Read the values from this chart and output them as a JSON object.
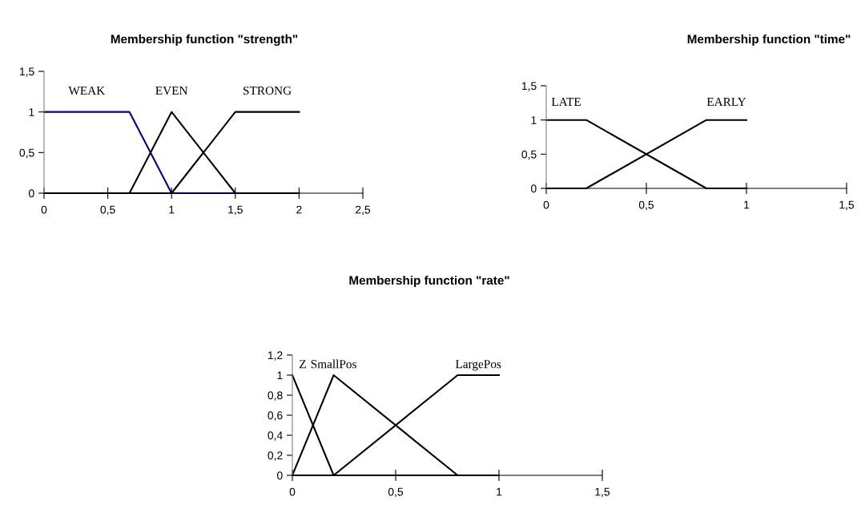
{
  "chart_data": [
    {
      "type": "line",
      "title": "Membership function \"strength\"",
      "xlim": [
        0,
        2.5
      ],
      "ylim": [
        0,
        1.5
      ],
      "xticks": [
        0,
        {
          "value": 0.5,
          "label": "0,5"
        },
        1,
        {
          "value": 1.5,
          "label": "1,5"
        },
        2,
        {
          "value": 2.5,
          "label": "2,5"
        }
      ],
      "yticks": [
        0,
        {
          "value": 0.5,
          "label": "0,5"
        },
        1,
        {
          "value": 1.5,
          "label": "1,5"
        }
      ],
      "series": [
        {
          "name": "WEAK",
          "color": "#000080",
          "x": [
            0,
            0.67,
            1,
            1.5
          ],
          "values": [
            1,
            1,
            0,
            0
          ]
        },
        {
          "name": "EVEN",
          "color": "#000000",
          "x": [
            0,
            0.67,
            1,
            1.5,
            2
          ],
          "values": [
            0,
            0,
            1,
            0,
            0
          ]
        },
        {
          "name": "STRONG",
          "color": "#000000",
          "x": [
            0,
            1,
            1.5,
            2
          ],
          "values": [
            0,
            0,
            1,
            1
          ]
        }
      ],
      "grid": false,
      "legend": false
    },
    {
      "type": "line",
      "title": "Membership function \"time\"",
      "xlim": [
        0,
        1.5
      ],
      "ylim": [
        0,
        1.5
      ],
      "xticks": [
        0,
        {
          "value": 0.5,
          "label": "0,5"
        },
        1,
        {
          "value": 1.5,
          "label": "1,5"
        }
      ],
      "yticks": [
        0,
        {
          "value": 0.5,
          "label": "0,5"
        },
        1,
        {
          "value": 1.5,
          "label": "1,5"
        }
      ],
      "series": [
        {
          "name": "LATE",
          "color": "#000000",
          "x": [
            0,
            0.2,
            0.8,
            1
          ],
          "values": [
            1,
            1,
            0,
            0
          ]
        },
        {
          "name": "EARLY",
          "color": "#000000",
          "x": [
            0,
            0.2,
            0.8,
            1
          ],
          "values": [
            0,
            0,
            1,
            1
          ]
        }
      ],
      "grid": false,
      "legend": false
    },
    {
      "type": "line",
      "title": "Membership function \"rate\"",
      "xlim": [
        0,
        1.5
      ],
      "ylim": [
        0,
        1.2
      ],
      "xticks": [
        0,
        {
          "value": 0.5,
          "label": "0,5"
        },
        1,
        {
          "value": 1.5,
          "label": "1,5"
        }
      ],
      "yticks": [
        0,
        {
          "value": 0.2,
          "label": "0,2"
        },
        {
          "value": 0.4,
          "label": "0,4"
        },
        {
          "value": 0.6,
          "label": "0,6"
        },
        {
          "value": 0.8,
          "label": "0,8"
        },
        1,
        {
          "value": 1.2,
          "label": "1,2"
        }
      ],
      "series": [
        {
          "name": "Z",
          "color": "#000000",
          "x": [
            0,
            0.2,
            1
          ],
          "values": [
            1,
            0,
            0
          ]
        },
        {
          "name": "SmallPos",
          "color": "#000000",
          "x": [
            0,
            0.2,
            0.8,
            1
          ],
          "values": [
            0,
            1,
            0,
            0
          ]
        },
        {
          "name": "LargePos",
          "color": "#000000",
          "x": [
            0,
            0.2,
            0.8,
            1
          ],
          "values": [
            0,
            0,
            1,
            1
          ]
        }
      ],
      "grid": false,
      "legend": false
    }
  ]
}
